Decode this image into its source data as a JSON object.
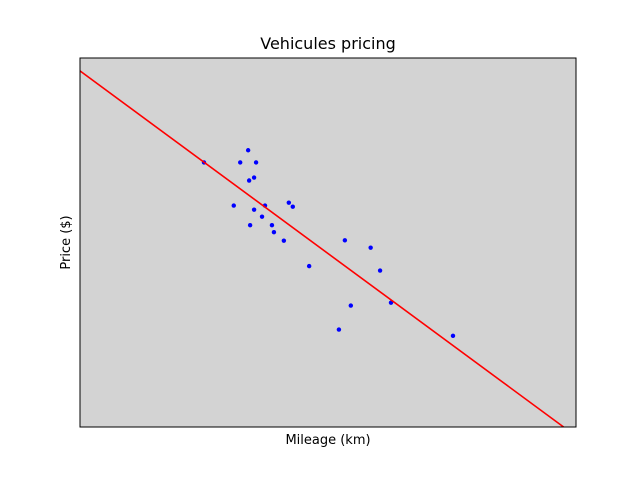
{
  "chart_data": {
    "type": "scatter",
    "title": "Vehicules pricing",
    "xlabel": "Mileage (km)",
    "ylabel": "Price ($)",
    "xlim": [
      0,
      100
    ],
    "ylim": [
      0,
      100
    ],
    "x_ticks_visible": false,
    "y_ticks_visible": false,
    "grid": false,
    "legend": "none",
    "series": [
      {
        "type": "scatter",
        "color": "#0000ff",
        "points": [
          [
            25,
            71.7
          ],
          [
            32.3,
            71.7
          ],
          [
            33.9,
            75.0
          ],
          [
            35.5,
            71.7
          ],
          [
            34.1,
            66.8
          ],
          [
            35.1,
            67.6
          ],
          [
            31,
            60.0
          ],
          [
            37.3,
            60.0
          ],
          [
            35.1,
            58.9
          ],
          [
            36.7,
            57.0
          ],
          [
            34.3,
            54.7
          ],
          [
            38.7,
            54.7
          ],
          [
            39.1,
            52.8
          ],
          [
            41.1,
            50.5
          ],
          [
            42.1,
            60.8
          ],
          [
            42.9,
            59.7
          ],
          [
            46.2,
            43.6
          ],
          [
            53.4,
            50.6
          ],
          [
            58.6,
            48.6
          ],
          [
            60.5,
            42.4
          ],
          [
            54.6,
            32.9
          ],
          [
            52.2,
            26.4
          ],
          [
            62.7,
            33.7
          ],
          [
            75.2,
            24.7
          ]
        ]
      },
      {
        "type": "line",
        "color": "#ff0000",
        "points": [
          [
            0,
            96.5
          ],
          [
            97.5,
            0
          ]
        ]
      }
    ]
  }
}
